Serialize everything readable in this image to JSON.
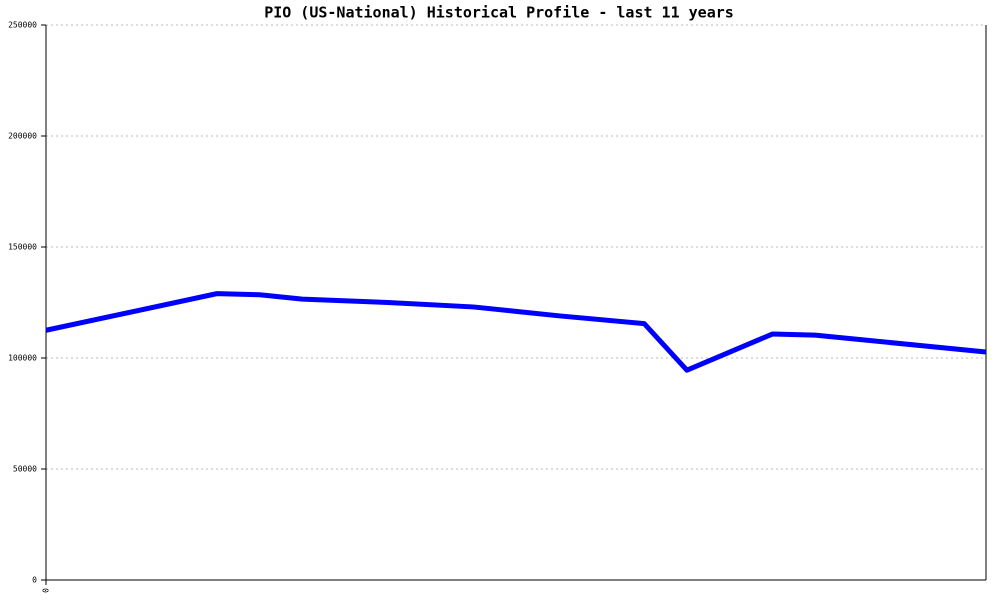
{
  "chart_data": {
    "type": "line",
    "title": "PIO (US-National) Historical Profile - last 11 years",
    "x": [
      0,
      24,
      30,
      36,
      48,
      60,
      66,
      72,
      84,
      90,
      102,
      108,
      132
    ],
    "series": [
      {
        "name": "PIO",
        "color": "#0000ff",
        "values": [
          112500,
          129000,
          128500,
          126500,
          125000,
          123000,
          121000,
          119000,
          115500,
          94500,
          110800,
          110300,
          102700
        ]
      }
    ],
    "xlim": [
      0,
      132
    ],
    "xticks": [
      0
    ],
    "ylim": [
      0,
      250000
    ],
    "yticks": [
      0,
      50000,
      100000,
      150000,
      200000,
      250000
    ],
    "grid": true
  }
}
